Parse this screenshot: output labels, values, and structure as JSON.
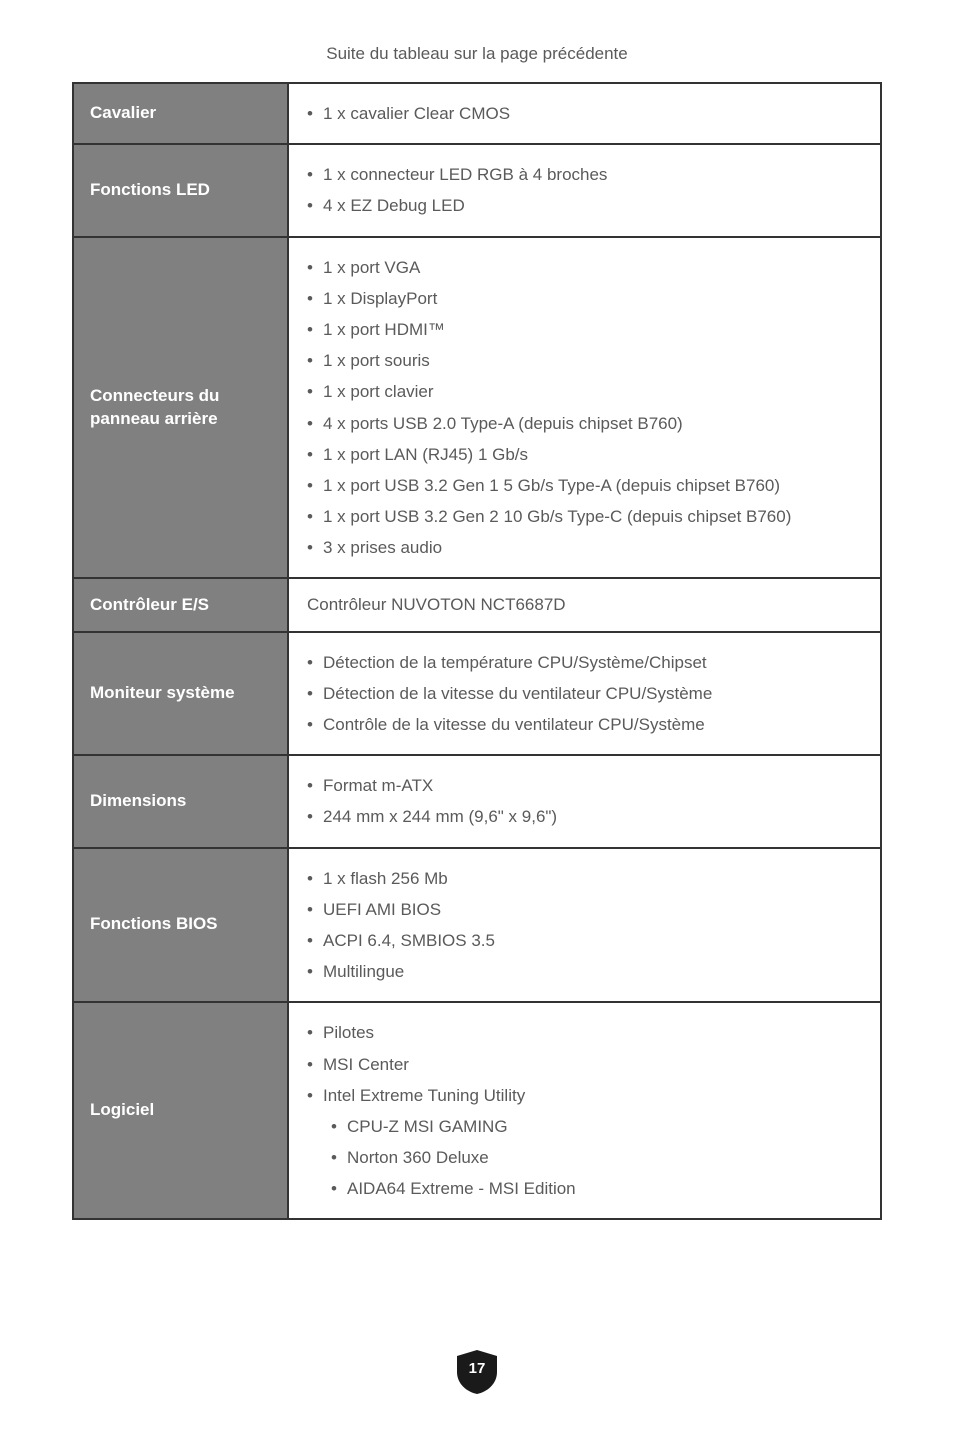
{
  "caption": "Suite du tableau sur la page précédente",
  "page_number": "17",
  "colors": {
    "page_bg": "#ffffff",
    "text": "#5a5a5a",
    "label_bg": "#808080",
    "label_text": "#ffffff",
    "border": "#333333",
    "badge_fill": "#1a1a1a"
  },
  "table": {
    "rows": [
      {
        "label": "Cavalier",
        "items": [
          "1 x cavalier Clear CMOS"
        ]
      },
      {
        "label": "Fonctions LED",
        "items": [
          "1 x connecteur LED RGB à 4 broches",
          "4 x EZ Debug LED"
        ]
      },
      {
        "label": "Connecteurs du panneau arrière",
        "items": [
          "1 x port VGA",
          "1 x DisplayPort",
          "1 x port HDMI™",
          "1 x port souris",
          "1 x port clavier",
          "4 x ports USB 2.0 Type-A (depuis chipset B760)",
          "1 x port LAN (RJ45) 1 Gb/s",
          "1 x port USB 3.2 Gen 1 5 Gb/s Type-A (depuis chipset B760)",
          "1 x port USB 3.2 Gen 2 10 Gb/s Type-C (depuis chipset B760)",
          "3 x prises audio"
        ]
      },
      {
        "label": "Contrôleur E/S",
        "plain": "Contrôleur NUVOTON NCT6687D"
      },
      {
        "label": "Moniteur système",
        "items": [
          "Détection de la température CPU/Système/Chipset",
          "Détection de la vitesse du ventilateur CPU/Système",
          "Contrôle de la vitesse du ventilateur CPU/Système"
        ]
      },
      {
        "label": "Dimensions",
        "items": [
          "Format m-ATX",
          "244 mm x 244 mm (9,6\" x 9,6\")"
        ]
      },
      {
        "label": "Fonctions BIOS",
        "items": [
          "1 x flash 256 Mb",
          "UEFI AMI BIOS",
          "ACPI 6.4, SMBIOS 3.5",
          "Multilingue"
        ]
      },
      {
        "label": "Logiciel",
        "items": [
          "Pilotes",
          "MSI Center",
          "Intel Extreme Tuning Utility",
          {
            "text": "CPU-Z MSI GAMING",
            "indent": true
          },
          {
            "text": "Norton 360 Deluxe",
            "indent": true
          },
          {
            "text": "AIDA64 Extreme - MSI Edition",
            "indent": true
          }
        ]
      }
    ]
  }
}
